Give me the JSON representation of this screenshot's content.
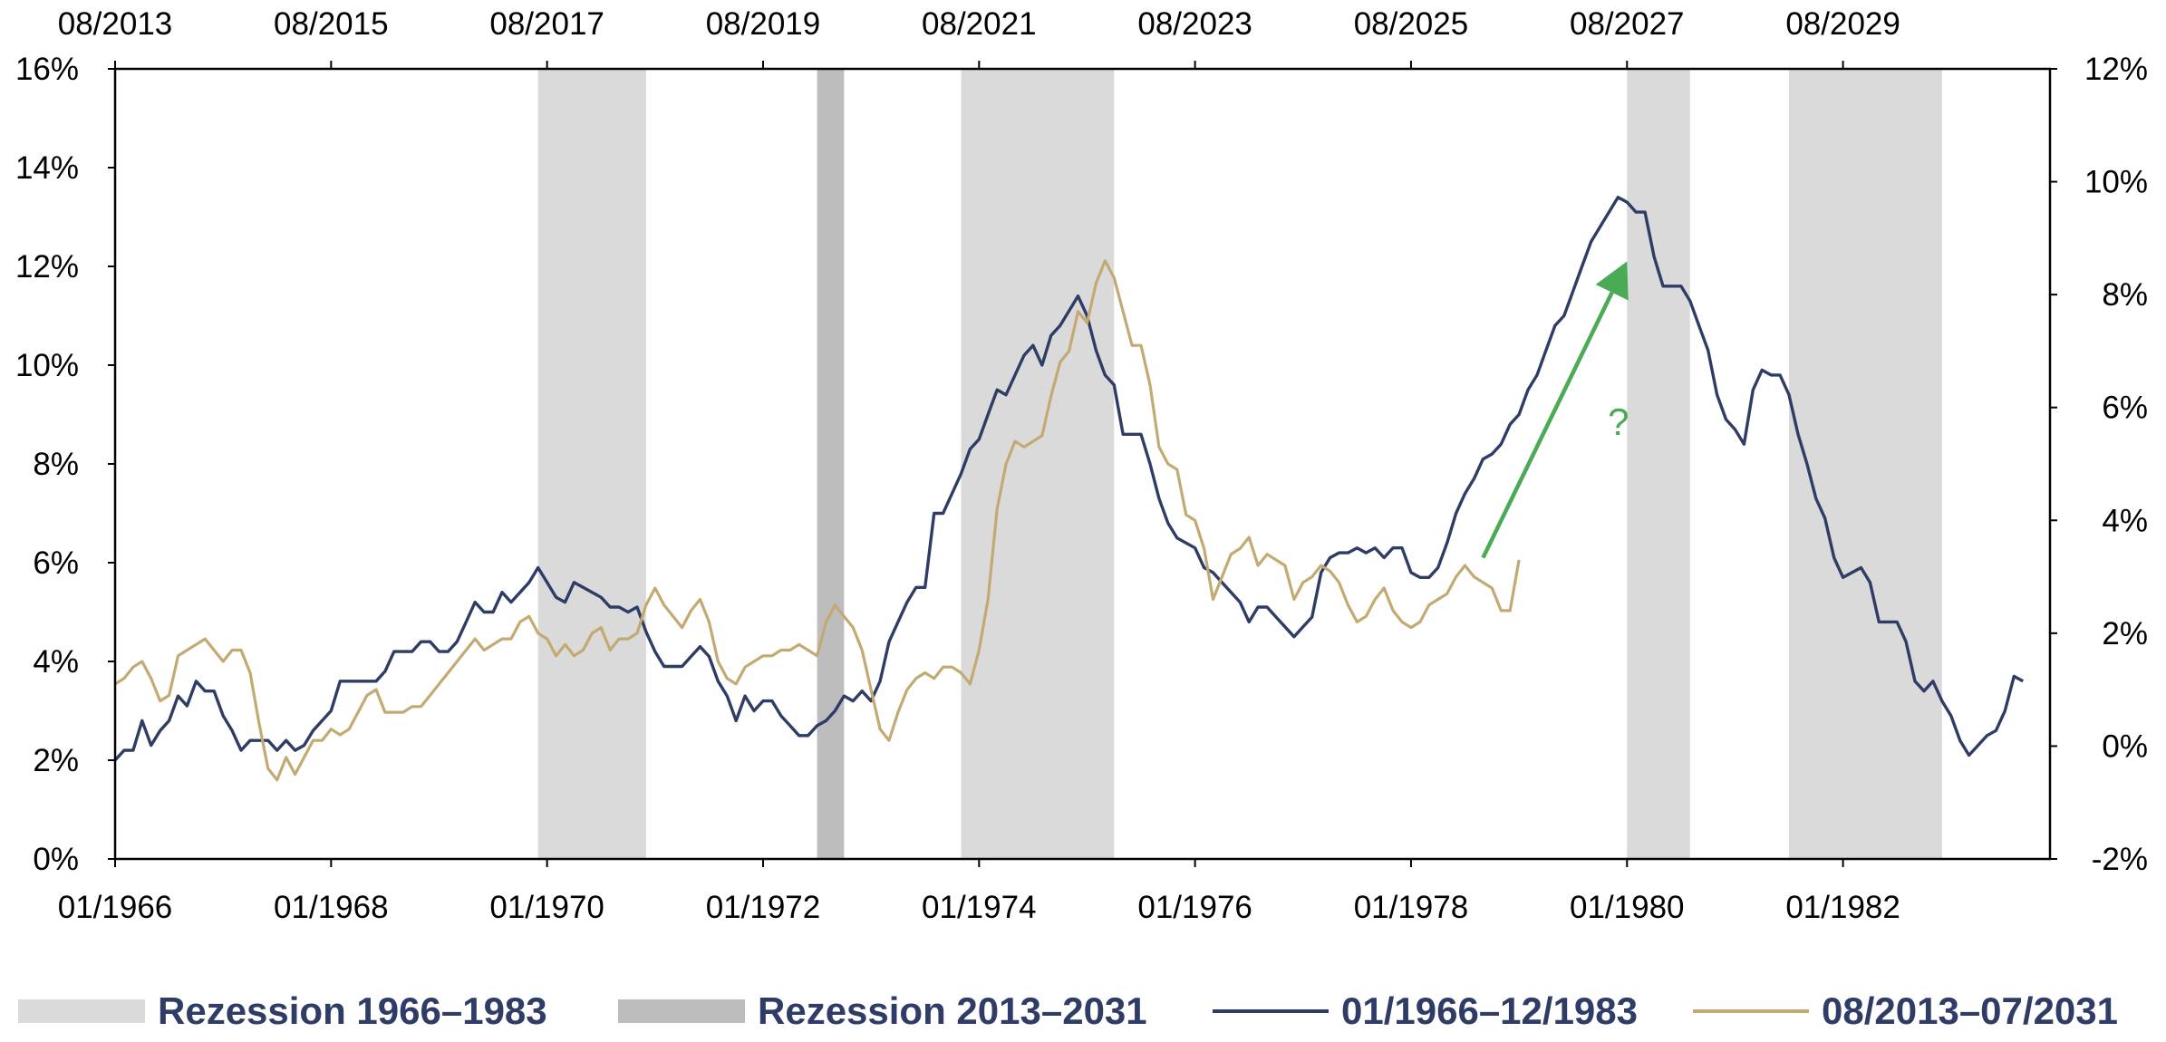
{
  "chart_data": {
    "type": "line",
    "colors": {
      "series_1966": "#2f3d66",
      "series_2013": "#c3aa72",
      "recession_1966": "#dadada",
      "recession_2013": "#bdbdbd",
      "annotation_arrow": "#4aaa55",
      "legend_text": "#2f3d66"
    },
    "x_axis_bottom": {
      "range": [
        "01/1966",
        "12/1983"
      ],
      "ticks": [
        "01/1966",
        "01/1968",
        "01/1970",
        "01/1972",
        "01/1974",
        "01/1976",
        "01/1978",
        "01/1980",
        "01/1982"
      ]
    },
    "x_axis_top": {
      "range": [
        "08/2013",
        "07/2031"
      ],
      "ticks": [
        "08/2013",
        "08/2015",
        "08/2017",
        "08/2019",
        "08/2021",
        "08/2023",
        "08/2025",
        "08/2027",
        "08/2029"
      ]
    },
    "y_axis_left": {
      "range": [
        0,
        16
      ],
      "unit": "%",
      "ticks": [
        "0%",
        "2%",
        "4%",
        "6%",
        "8%",
        "10%",
        "12%",
        "14%",
        "16%"
      ]
    },
    "y_axis_right": {
      "range": [
        -2,
        12
      ],
      "unit": "%",
      "ticks": [
        "-2%",
        "0%",
        "2%",
        "4%",
        "6%",
        "8%",
        "10%",
        "12%"
      ]
    },
    "recessions_1966": [
      [
        "12/1969",
        "11/1970"
      ],
      [
        "11/1973",
        "03/1975"
      ],
      [
        "01/1980",
        "07/1980"
      ],
      [
        "07/1981",
        "11/1982"
      ]
    ],
    "recessions_2013": [
      [
        "02/2020",
        "04/2020"
      ]
    ],
    "series": [
      {
        "name": "01/1966–12/1983",
        "axis": "left",
        "x_start": "01/1966",
        "values": [
          2.0,
          2.2,
          2.2,
          2.8,
          2.3,
          2.6,
          2.8,
          3.3,
          3.1,
          3.6,
          3.4,
          3.4,
          2.9,
          2.6,
          2.2,
          2.4,
          2.4,
          2.4,
          2.2,
          2.4,
          2.2,
          2.3,
          2.6,
          2.8,
          3.0,
          3.6,
          3.6,
          3.6,
          3.6,
          3.6,
          3.8,
          4.2,
          4.2,
          4.2,
          4.4,
          4.4,
          4.2,
          4.2,
          4.4,
          4.8,
          5.2,
          5.0,
          5.0,
          5.4,
          5.2,
          5.4,
          5.6,
          5.9,
          5.6,
          5.3,
          5.2,
          5.6,
          5.5,
          5.4,
          5.3,
          5.1,
          5.1,
          5.0,
          5.1,
          4.6,
          4.2,
          3.9,
          3.9,
          3.9,
          4.1,
          4.3,
          4.1,
          3.6,
          3.3,
          2.8,
          3.3,
          3.0,
          3.2,
          3.2,
          2.9,
          2.7,
          2.5,
          2.5,
          2.7,
          2.8,
          3.0,
          3.3,
          3.2,
          3.4,
          3.2,
          3.6,
          4.4,
          4.8,
          5.2,
          5.5,
          5.5,
          7.0,
          7.0,
          7.4,
          7.8,
          8.3,
          8.5,
          9.0,
          9.5,
          9.4,
          9.8,
          10.2,
          10.4,
          10.0,
          10.6,
          10.8,
          11.1,
          11.4,
          11.0,
          10.3,
          9.8,
          9.6,
          8.6,
          8.6,
          8.6,
          8.0,
          7.3,
          6.8,
          6.5,
          6.4,
          6.3,
          5.9,
          5.8,
          5.6,
          5.4,
          5.2,
          4.8,
          5.1,
          5.1,
          4.9,
          4.7,
          4.5,
          4.7,
          4.9,
          5.8,
          6.1,
          6.2,
          6.2,
          6.3,
          6.2,
          6.3,
          6.1,
          6.3,
          6.3,
          5.8,
          5.7,
          5.7,
          5.9,
          6.4,
          7.0,
          7.4,
          7.7,
          8.1,
          8.2,
          8.4,
          8.8,
          9.0,
          9.5,
          9.8,
          10.3,
          10.8,
          11.0,
          11.5,
          12.0,
          12.5,
          12.8,
          13.1,
          13.4,
          13.3,
          13.1,
          13.1,
          12.2,
          11.6,
          11.6,
          11.6,
          11.3,
          10.8,
          10.3,
          9.4,
          8.9,
          8.7,
          8.4,
          9.5,
          9.9,
          9.8,
          9.8,
          9.4,
          8.6,
          8.0,
          7.3,
          6.9,
          6.1,
          5.7,
          5.8,
          5.9,
          5.6,
          4.8,
          4.8,
          4.8,
          4.4,
          3.6,
          3.4,
          3.6,
          3.2,
          2.9,
          2.4,
          2.1,
          2.3,
          2.5,
          2.6,
          3.0,
          3.7,
          3.6
        ]
      },
      {
        "name": "08/2013–07/2031",
        "axis": "right",
        "x_start": "08/2013",
        "values": [
          1.1,
          1.2,
          1.4,
          1.5,
          1.2,
          0.8,
          0.9,
          1.6,
          1.7,
          1.8,
          1.9,
          1.7,
          1.5,
          1.7,
          1.7,
          1.3,
          0.4,
          -0.4,
          -0.6,
          -0.2,
          -0.5,
          -0.2,
          0.1,
          0.1,
          0.3,
          0.2,
          0.3,
          0.6,
          0.9,
          1.0,
          0.6,
          0.6,
          0.6,
          0.7,
          0.7,
          0.9,
          1.1,
          1.3,
          1.5,
          1.7,
          1.9,
          1.7,
          1.8,
          1.9,
          1.9,
          2.2,
          2.3,
          2.0,
          1.9,
          1.6,
          1.8,
          1.6,
          1.7,
          2.0,
          2.1,
          1.7,
          1.9,
          1.9,
          2.0,
          2.5,
          2.8,
          2.5,
          2.3,
          2.1,
          2.4,
          2.6,
          2.2,
          1.5,
          1.2,
          1.1,
          1.4,
          1.5,
          1.6,
          1.6,
          1.7,
          1.7,
          1.8,
          1.7,
          1.6,
          2.2,
          2.5,
          2.3,
          2.1,
          1.7,
          1.0,
          0.3,
          0.1,
          0.6,
          1.0,
          1.2,
          1.3,
          1.2,
          1.4,
          1.4,
          1.3,
          1.1,
          1.7,
          2.6,
          4.2,
          5.0,
          5.4,
          5.3,
          5.4,
          5.5,
          6.2,
          6.8,
          7.0,
          7.7,
          7.5,
          8.2,
          8.6,
          8.3,
          7.7,
          7.1,
          7.1,
          6.4,
          5.3,
          5.0,
          4.9,
          4.1,
          4.0,
          3.5,
          2.6,
          3.0,
          3.4,
          3.5,
          3.7,
          3.2,
          3.4,
          3.3,
          3.2,
          2.6,
          2.9,
          3.0,
          3.2,
          3.1,
          2.9,
          2.5,
          2.2,
          2.3,
          2.6,
          2.8,
          2.4,
          2.2,
          2.1,
          2.2,
          2.5,
          2.6,
          2.7,
          3.0,
          3.2,
          3.0,
          2.9,
          2.8,
          2.4,
          2.4,
          3.3
        ]
      }
    ],
    "annotation": {
      "text": "?",
      "arrow_from": [
        "09/1978",
        6.1
      ],
      "arrow_to": [
        "01/1980",
        12.1
      ]
    },
    "legend": {
      "items": [
        {
          "label": "Rezession 1966–1983",
          "swatch": "box",
          "color": "#dadada"
        },
        {
          "label": "Rezession 2013–2031",
          "swatch": "box",
          "color": "#bdbdbd"
        },
        {
          "label": "01/1966–12/1983",
          "swatch": "line",
          "color": "#2f3d66"
        },
        {
          "label": "08/2013–07/2031",
          "swatch": "line",
          "color": "#c3aa72"
        }
      ],
      "position": "bottom"
    },
    "grid": false
  }
}
